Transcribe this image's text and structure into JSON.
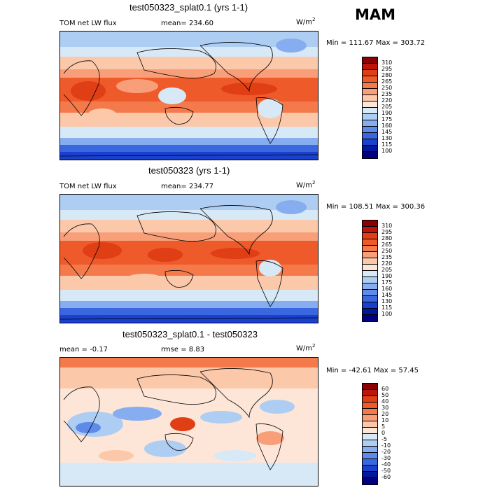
{
  "season": "MAM",
  "panels": [
    {
      "title": "test050323_splat0.1 (yrs 1-1)",
      "left_label": "TOM net LW flux",
      "stat_label": "mean=",
      "stat_value": "234.60",
      "units_base": "W/m",
      "units_exp": "2",
      "min_label": "Min =",
      "min_value": "111.67",
      "max_label": "Max =",
      "max_value": "303.72",
      "colorbar_levels": [
        "310",
        "295",
        "280",
        "265",
        "250",
        "235",
        "220",
        "205",
        "190",
        "175",
        "160",
        "145",
        "130",
        "115",
        "100"
      ]
    },
    {
      "title": "test050323 (yrs 1-1)",
      "left_label": "TOM net LW flux",
      "stat_label": "mean=",
      "stat_value": "234.77",
      "units_base": "W/m",
      "units_exp": "2",
      "min_label": "Min =",
      "min_value": "108.51",
      "max_label": "Max =",
      "max_value": "300.36",
      "colorbar_levels": [
        "310",
        "295",
        "280",
        "265",
        "250",
        "235",
        "220",
        "205",
        "190",
        "175",
        "160",
        "145",
        "130",
        "115",
        "100"
      ]
    },
    {
      "title": "test050323_splat0.1 - test050323",
      "left_label": "mean =",
      "left_value": "-0.17",
      "stat_label": "rmse =",
      "stat_value": "8.83",
      "units_base": "W/m",
      "units_exp": "2",
      "min_label": "Min =",
      "min_value": "-42.61",
      "max_label": "Max =",
      "max_value": "57.45",
      "colorbar_levels": [
        "60",
        "50",
        "40",
        "30",
        "20",
        "10",
        "5",
        "0",
        "-5",
        "-10",
        "-20",
        "-30",
        "-40",
        "-50",
        "-60"
      ]
    }
  ],
  "colors": {
    "abs_scale": [
      "#8b0000",
      "#c0140a",
      "#e03e14",
      "#ef5a2a",
      "#f47a4c",
      "#f89f7a",
      "#fbc8aa",
      "#fde6d8",
      "#d7e8f7",
      "#aecdf2",
      "#86adf0",
      "#5e8be9",
      "#3a66df",
      "#1a40cf",
      "#00189a",
      "#000080"
    ],
    "diff_scale": [
      "#8b0000",
      "#c0140a",
      "#e03e14",
      "#ef5a2a",
      "#f47a4c",
      "#f89f7a",
      "#fbc8aa",
      "#fde6d8",
      "#d7e8f7",
      "#aecdf2",
      "#86adf0",
      "#5e8be9",
      "#3a66df",
      "#1a40cf",
      "#00189a",
      "#000080"
    ]
  },
  "chart_data": [
    {
      "type": "heatmap",
      "title": "test050323_splat0.1 (yrs 1-1)",
      "variable": "TOM net LW flux",
      "season": "MAM",
      "mean": 234.6,
      "min": 111.67,
      "max": 303.72,
      "units": "W/m^2",
      "contour_levels": [
        100,
        115,
        130,
        145,
        160,
        175,
        190,
        205,
        220,
        235,
        250,
        265,
        280,
        295,
        310
      ]
    },
    {
      "type": "heatmap",
      "title": "test050323 (yrs 1-1)",
      "variable": "TOM net LW flux",
      "season": "MAM",
      "mean": 234.77,
      "min": 108.51,
      "max": 300.36,
      "units": "W/m^2",
      "contour_levels": [
        100,
        115,
        130,
        145,
        160,
        175,
        190,
        205,
        220,
        235,
        250,
        265,
        280,
        295,
        310
      ]
    },
    {
      "type": "heatmap",
      "title": "test050323_splat0.1 - test050323",
      "season": "MAM",
      "mean": -0.17,
      "rmse": 8.83,
      "min": -42.61,
      "max": 57.45,
      "units": "W/m^2",
      "contour_levels": [
        -60,
        -50,
        -40,
        -30,
        -20,
        -10,
        -5,
        0,
        5,
        10,
        20,
        30,
        40,
        50,
        60
      ]
    }
  ]
}
